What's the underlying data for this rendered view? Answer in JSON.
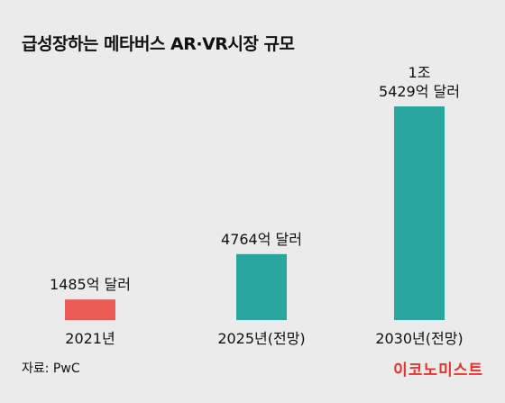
{
  "title": "급성장하는 메타버스 AR·VR시장 규모",
  "source": "자료: PwC",
  "brand": "이코노미스트",
  "colors": {
    "background": "#ebebeb",
    "bar_2021": "#eb5b55",
    "bar_forecast": "#2aa5a0"
  },
  "chart_data": {
    "type": "bar",
    "title": "급성장하는 메타버스 AR·VR시장 규모",
    "categories": [
      "2021년",
      "2025년(전망)",
      "2030년(전망)"
    ],
    "values": [
      1485,
      4764,
      15429
    ],
    "value_labels": [
      [
        "1485억 달러"
      ],
      [
        "4764억 달러"
      ],
      [
        "1조",
        "5429억 달러"
      ]
    ],
    "unit": "억 달러",
    "xlabel": "",
    "ylabel": "",
    "ylim": [
      0,
      15429
    ],
    "grid": false,
    "legend": "none",
    "bar_colors": [
      "#eb5b55",
      "#2aa5a0",
      "#2aa5a0"
    ]
  }
}
